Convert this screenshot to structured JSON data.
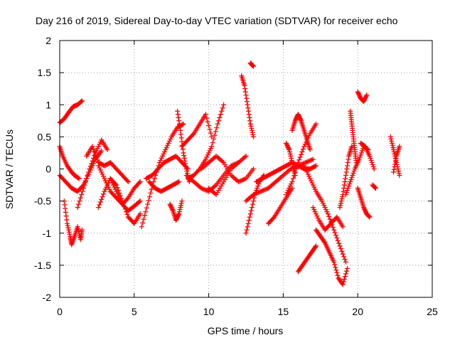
{
  "chart_data": {
    "type": "scatter",
    "title": "Day 216 of 2019, Sidereal Day-to-day VTEC variation (SDTVAR) for receiver echo",
    "xlabel": "GPS time / hours",
    "ylabel": "SDTVAR / TECUs",
    "xlim": [
      0,
      25
    ],
    "ylim": [
      -2,
      2
    ],
    "xticks": [
      "0",
      "5",
      "10",
      "15",
      "20",
      "25"
    ],
    "yticks": [
      "2",
      "1.5",
      "1",
      "0.5",
      "0",
      "-0.5",
      "-1",
      "-1.5",
      "-2"
    ],
    "grid": true,
    "marker": "+",
    "series": [
      {
        "name": "SDTVAR",
        "color": "#ff0000",
        "tracks": [
          {
            "x": [
              0.0,
              0.3,
              0.6,
              0.9,
              1.2,
              1.5
            ],
            "y": [
              0.72,
              0.78,
              0.88,
              0.97,
              1.0,
              1.06
            ]
          },
          {
            "x": [
              0.0,
              0.2,
              0.5,
              0.8,
              1.0,
              1.3
            ],
            "y": [
              0.35,
              0.2,
              0.05,
              -0.05,
              -0.1,
              -0.15
            ]
          },
          {
            "x": [
              0.3,
              0.5,
              0.7,
              0.8,
              1.0,
              1.2,
              1.4,
              1.5
            ],
            "y": [
              -0.5,
              -0.85,
              -1.05,
              -1.18,
              -1.05,
              -0.9,
              -1.1,
              -0.95
            ]
          },
          {
            "x": [
              0.0,
              0.4,
              0.8,
              1.2,
              1.6,
              2.0,
              2.4,
              2.8
            ],
            "y": [
              -0.1,
              -0.2,
              -0.3,
              -0.35,
              -0.25,
              -0.05,
              0.15,
              0.28
            ]
          },
          {
            "x": [
              1.2,
              1.6,
              2.0,
              2.4,
              2.8,
              3.2
            ],
            "y": [
              -0.6,
              -0.3,
              0.0,
              0.25,
              0.45,
              0.3
            ]
          },
          {
            "x": [
              1.8,
              2.2,
              2.6,
              3.0,
              3.4,
              3.8,
              4.2,
              4.6
            ],
            "y": [
              0.2,
              0.35,
              0.1,
              0.05,
              0.1,
              0.0,
              -0.1,
              -0.2
            ]
          },
          {
            "x": [
              2.6,
              3.0,
              3.4,
              3.8,
              4.2,
              4.6,
              5.0,
              5.4
            ],
            "y": [
              -0.6,
              -0.35,
              -0.15,
              -0.25,
              -0.5,
              -0.75,
              -0.85,
              -0.7
            ]
          },
          {
            "x": [
              2.6,
              3.0,
              3.4,
              3.8,
              4.2,
              4.6,
              5.0,
              5.4
            ],
            "y": [
              0.05,
              -0.15,
              -0.35,
              -0.45,
              -0.55,
              -0.45,
              -0.3,
              -0.2
            ]
          },
          {
            "x": [
              3.4,
              3.8,
              4.2,
              4.6,
              5.0,
              5.4
            ],
            "y": [
              -0.15,
              -0.35,
              -0.55,
              -0.65,
              -0.58,
              -0.5
            ]
          },
          {
            "x": [
              5.5,
              5.9,
              6.3,
              6.7,
              7.1,
              7.5,
              7.9,
              8.3
            ],
            "y": [
              -0.9,
              -0.55,
              -0.2,
              0.1,
              0.3,
              0.5,
              0.65,
              0.7
            ]
          },
          {
            "x": [
              5.8,
              6.2,
              6.6,
              7.0,
              7.4,
              7.8,
              8.2,
              8.6
            ],
            "y": [
              -0.15,
              -0.1,
              0.0,
              0.1,
              0.15,
              0.2,
              0.1,
              0.0
            ]
          },
          {
            "x": [
              6.0,
              6.4,
              6.8,
              7.2,
              7.6,
              8.0
            ],
            "y": [
              -0.2,
              -0.3,
              -0.35,
              -0.3,
              -0.25,
              -0.2
            ]
          },
          {
            "x": [
              7.4,
              7.6,
              7.8,
              8.0,
              8.2
            ],
            "y": [
              -0.55,
              -0.65,
              -0.8,
              -0.7,
              -0.5
            ]
          },
          {
            "x": [
              7.9,
              8.1,
              8.3,
              8.5,
              8.7
            ],
            "y": [
              0.9,
              0.6,
              0.25,
              0.0,
              -0.2
            ]
          },
          {
            "x": [
              8.2,
              8.6,
              9.0,
              9.4,
              9.8,
              10.2
            ],
            "y": [
              0.35,
              0.45,
              0.55,
              0.7,
              0.85,
              0.5
            ]
          },
          {
            "x": [
              8.6,
              9.0,
              9.4,
              9.8,
              10.2,
              10.6,
              11.0
            ],
            "y": [
              -0.15,
              -0.1,
              0.0,
              0.15,
              0.35,
              0.7,
              1.0
            ]
          },
          {
            "x": [
              8.5,
              9.0,
              9.5,
              10.0,
              10.5,
              11.0,
              11.5,
              12.0
            ],
            "y": [
              -0.1,
              -0.2,
              -0.3,
              -0.35,
              -0.25,
              -0.1,
              0.05,
              0.1
            ]
          },
          {
            "x": [
              9.5,
              10.0,
              10.5,
              11.0,
              11.5,
              12.0,
              12.5,
              13.0
            ],
            "y": [
              0.0,
              0.1,
              0.2,
              0.1,
              -0.1,
              -0.2,
              -0.15,
              0.0
            ]
          },
          {
            "x": [
              10.0,
              10.5,
              11.0,
              11.5,
              12.0,
              12.5
            ],
            "y": [
              -0.3,
              -0.4,
              -0.2,
              0.0,
              0.1,
              0.2
            ]
          },
          {
            "x": [
              12.2,
              12.4,
              12.6,
              12.8,
              13.0
            ],
            "y": [
              1.45,
              1.3,
              1.0,
              0.7,
              0.5
            ]
          },
          {
            "x": [
              12.8,
              12.9,
              13.0
            ],
            "y": [
              1.65,
              1.62,
              1.6
            ]
          },
          {
            "x": [
              12.5,
              12.8,
              13.1,
              13.4,
              13.7
            ],
            "y": [
              -1.0,
              -0.7,
              -0.4,
              -0.2,
              -0.1
            ]
          },
          {
            "x": [
              12.5,
              13.0,
              13.5,
              14.0,
              14.5,
              15.0,
              15.5,
              16.0,
              16.5,
              17.0
            ],
            "y": [
              -0.5,
              -0.4,
              -0.35,
              -0.3,
              -0.2,
              -0.1,
              0.0,
              0.05,
              0.1,
              0.15
            ]
          },
          {
            "x": [
              13.2,
              13.6,
              14.0,
              14.4,
              14.8,
              15.2,
              15.6,
              16.0,
              16.4,
              16.8,
              17.2
            ],
            "y": [
              -0.2,
              -0.15,
              -0.1,
              -0.05,
              0.0,
              0.05,
              0.1,
              0.05,
              0.0,
              0.0,
              0.05
            ]
          },
          {
            "x": [
              14.0,
              14.4,
              14.8,
              15.2,
              15.6
            ],
            "y": [
              -0.85,
              -0.75,
              -0.6,
              -0.45,
              -0.3
            ]
          },
          {
            "x": [
              15.2,
              15.6,
              16.0,
              16.4,
              16.8,
              17.2
            ],
            "y": [
              -0.4,
              -0.2,
              0.1,
              0.35,
              0.55,
              0.7
            ]
          },
          {
            "x": [
              15.2,
              15.4,
              15.6,
              15.8
            ],
            "y": [
              0.4,
              0.3,
              0.1,
              -0.1
            ]
          },
          {
            "x": [
              15.6,
              15.8,
              16.0,
              16.2,
              16.4,
              16.6,
              16.8
            ],
            "y": [
              0.6,
              0.75,
              0.85,
              0.75,
              0.6,
              0.45,
              0.3
            ]
          },
          {
            "x": [
              16.0,
              16.3,
              16.6,
              16.9,
              17.2
            ],
            "y": [
              -1.6,
              -1.5,
              -1.4,
              -1.3,
              -1.2
            ]
          },
          {
            "x": [
              16.4,
              16.8,
              17.2,
              17.6,
              18.0,
              18.4,
              18.8,
              19.2
            ],
            "y": [
              0.05,
              -0.15,
              -0.35,
              -0.5,
              -0.7,
              -0.95,
              -1.2,
              -1.45
            ]
          },
          {
            "x": [
              17.2,
              17.5,
              17.8,
              18.1,
              18.4,
              18.7,
              19.0,
              19.3
            ],
            "y": [
              -0.95,
              -1.05,
              -1.15,
              -1.3,
              -1.45,
              -1.7,
              -1.8,
              -1.55
            ]
          },
          {
            "x": [
              17.0,
              17.4,
              17.8,
              18.2,
              18.6,
              19.0
            ],
            "y": [
              -0.6,
              -0.8,
              -0.95,
              -0.85,
              -0.75,
              -0.9
            ]
          },
          {
            "x": [
              18.8,
              19.0,
              19.2,
              19.4,
              19.6
            ],
            "y": [
              -0.6,
              -0.4,
              -0.1,
              0.2,
              0.35
            ]
          },
          {
            "x": [
              19.2,
              19.5,
              19.8,
              20.1,
              20.4,
              20.7
            ],
            "y": [
              -0.4,
              -0.2,
              0.0,
              0.15,
              0.35,
              0.3
            ]
          },
          {
            "x": [
              19.5,
              19.6,
              19.7,
              19.8,
              19.9
            ],
            "y": [
              0.9,
              0.7,
              0.5,
              0.3,
              0.1
            ]
          },
          {
            "x": [
              20.0,
              20.2,
              20.4,
              20.6
            ],
            "y": [
              1.2,
              1.1,
              1.05,
              1.15
            ]
          },
          {
            "x": [
              20.0,
              20.2,
              20.4,
              20.6,
              20.8
            ],
            "y": [
              -0.3,
              -0.45,
              -0.6,
              -0.7,
              -0.75
            ]
          },
          {
            "x": [
              20.2,
              20.5,
              20.8,
              21.1
            ],
            "y": [
              0.4,
              0.35,
              0.2,
              0.0
            ]
          },
          {
            "x": [
              21.0,
              21.2
            ],
            "y": [
              -0.25,
              -0.3
            ]
          },
          {
            "x": [
              22.2,
              22.4,
              22.6,
              22.8
            ],
            "y": [
              0.5,
              0.3,
              0.1,
              -0.1
            ]
          },
          {
            "x": [
              22.4,
              22.6,
              22.8
            ],
            "y": [
              -0.05,
              0.2,
              0.35
            ]
          }
        ]
      }
    ]
  }
}
